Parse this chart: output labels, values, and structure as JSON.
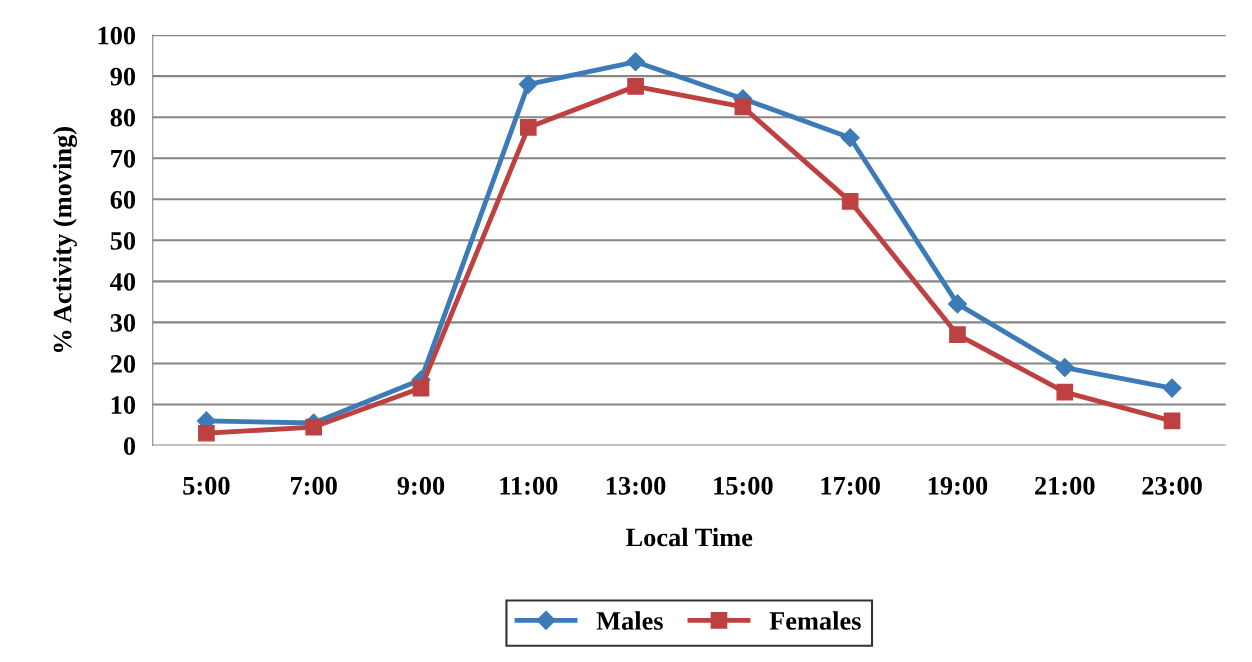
{
  "chart_data": {
    "type": "line",
    "xlabel": "Local Time",
    "ylabel": "% Activity (moving)",
    "categories": [
      "5:00",
      "7:00",
      "9:00",
      "11:00",
      "13:00",
      "15:00",
      "17:00",
      "19:00",
      "21:00",
      "23:00"
    ],
    "series": [
      {
        "name": "Males",
        "color": "#3d7ab8",
        "marker": "diamond",
        "values": [
          6,
          5.5,
          16,
          88,
          93.5,
          84.5,
          75,
          34.5,
          19,
          14
        ]
      },
      {
        "name": "Females",
        "color": "#be4141",
        "marker": "square",
        "values": [
          3,
          4.5,
          14,
          77.5,
          87.5,
          82.5,
          59.5,
          27,
          13,
          6
        ]
      }
    ],
    "ylim": [
      0,
      100
    ],
    "yticks": [
      0,
      10,
      20,
      30,
      40,
      50,
      60,
      70,
      80,
      90,
      100
    ],
    "grid": "y",
    "legend": "bottom",
    "line_style": "solid"
  }
}
